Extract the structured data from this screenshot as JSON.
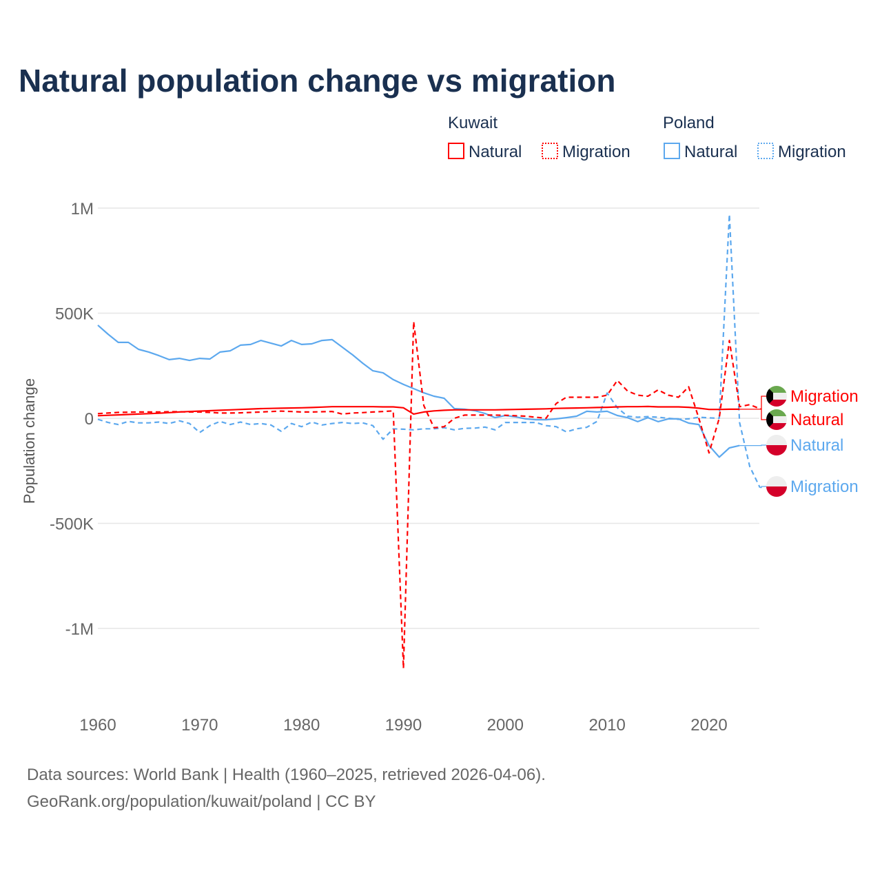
{
  "chart_data": {
    "type": "line",
    "title": "Natural population change vs migration",
    "ylabel": "Population change",
    "xlabel": "",
    "xlim": [
      1960,
      2025
    ],
    "ylim": [
      -1200000,
      1000000
    ],
    "x_ticks": [
      1960,
      1970,
      1980,
      1990,
      2000,
      2010,
      2020
    ],
    "x_tick_labels": [
      "1960",
      "1970",
      "1980",
      "1990",
      "2000",
      "2010",
      "2020"
    ],
    "y_ticks": [
      1000000,
      500000,
      0,
      -500000,
      -1000000
    ],
    "y_tick_labels": [
      "1M",
      "500K",
      "0",
      "-500K",
      "-1M"
    ],
    "grid": true,
    "legend": {
      "placement": "top-right",
      "groups": [
        {
          "title": "Kuwait",
          "items": [
            "Natural",
            "Migration"
          ]
        },
        {
          "title": "Poland",
          "items": [
            "Natural",
            "Migration"
          ]
        }
      ]
    },
    "colors": {
      "Kuwait": "#ff0000",
      "Poland": "#5ca8ee"
    },
    "series": [
      {
        "country": "Kuwait",
        "name": "Natural",
        "style": "solid",
        "end_label": "Migration_is_separate",
        "label": "Natural",
        "values": [
          12,
          14,
          16,
          18,
          20,
          22,
          24,
          27,
          30,
          32,
          34,
          36,
          38,
          40,
          42,
          44,
          46,
          47,
          48,
          49,
          50,
          51,
          53,
          55,
          55,
          55,
          55,
          55,
          54,
          54,
          50,
          20,
          30,
          35,
          38,
          40,
          40,
          40,
          40,
          40,
          41,
          42,
          43,
          44,
          45,
          47,
          48,
          49,
          50,
          51,
          52,
          54,
          55,
          55,
          56,
          54,
          54,
          54,
          52,
          48,
          42,
          42,
          43,
          43
        ]
      },
      {
        "country": "Kuwait",
        "name": "Migration",
        "style": "dashed",
        "label": "Migration",
        "values": [
          22,
          25,
          28,
          29,
          30,
          30,
          30,
          31,
          31,
          30,
          30,
          28,
          25,
          25,
          26,
          28,
          30,
          32,
          34,
          32,
          30,
          30,
          31,
          32,
          20,
          25,
          27,
          30,
          32,
          35,
          -1190,
          460,
          60,
          -45,
          -40,
          0,
          15,
          15,
          15,
          15,
          14,
          12,
          10,
          5,
          0,
          70,
          100,
          100,
          100,
          100,
          110,
          180,
          130,
          110,
          105,
          135,
          110,
          100,
          150,
          0,
          -165,
          0,
          370,
          55,
          65,
          45
        ]
      },
      {
        "country": "Poland",
        "name": "Natural",
        "style": "solid",
        "label": "Natural",
        "values": [
          443,
          400,
          361,
          361,
          328,
          315,
          298,
          279,
          285,
          275,
          285,
          282,
          315,
          321,
          348,
          351,
          370,
          357,
          344,
          370,
          351,
          354,
          370,
          374,
          338,
          302,
          262,
          226,
          216,
          184,
          161,
          141,
          121,
          105,
          95,
          46,
          43,
          36,
          23,
          3,
          13,
          7,
          -3,
          -7,
          -7,
          -3,
          3,
          10,
          33,
          30,
          33,
          13,
          3,
          -16,
          3,
          -16,
          -3,
          -3,
          -23,
          -30,
          -130,
          -185,
          -141,
          -130
        ]
      },
      {
        "country": "Poland",
        "name": "Migration",
        "style": "dashed",
        "label": "Migration",
        "values": [
          -5,
          -20,
          -30,
          -15,
          -22,
          -22,
          -18,
          -25,
          -12,
          -25,
          -68,
          -35,
          -15,
          -30,
          -18,
          -30,
          -25,
          -32,
          -62,
          -25,
          -40,
          -18,
          -32,
          -25,
          -20,
          -25,
          -22,
          -35,
          -100,
          -50,
          -52,
          -55,
          -50,
          -50,
          -45,
          -55,
          -48,
          -47,
          -42,
          -55,
          -20,
          -20,
          -20,
          -20,
          -35,
          -40,
          -65,
          -50,
          -43,
          -15,
          120,
          50,
          10,
          5,
          8,
          5,
          0,
          -5,
          -3,
          5,
          2,
          0,
          970,
          -20,
          -230,
          -330
        ]
      }
    ],
    "value_unit": "thousands",
    "source_line1": "Data sources: World Bank | Health (1960–2025, retrieved 2026-04-06).",
    "source_line2": "GeoRank.org/population/kuwait/poland | CC BY"
  }
}
